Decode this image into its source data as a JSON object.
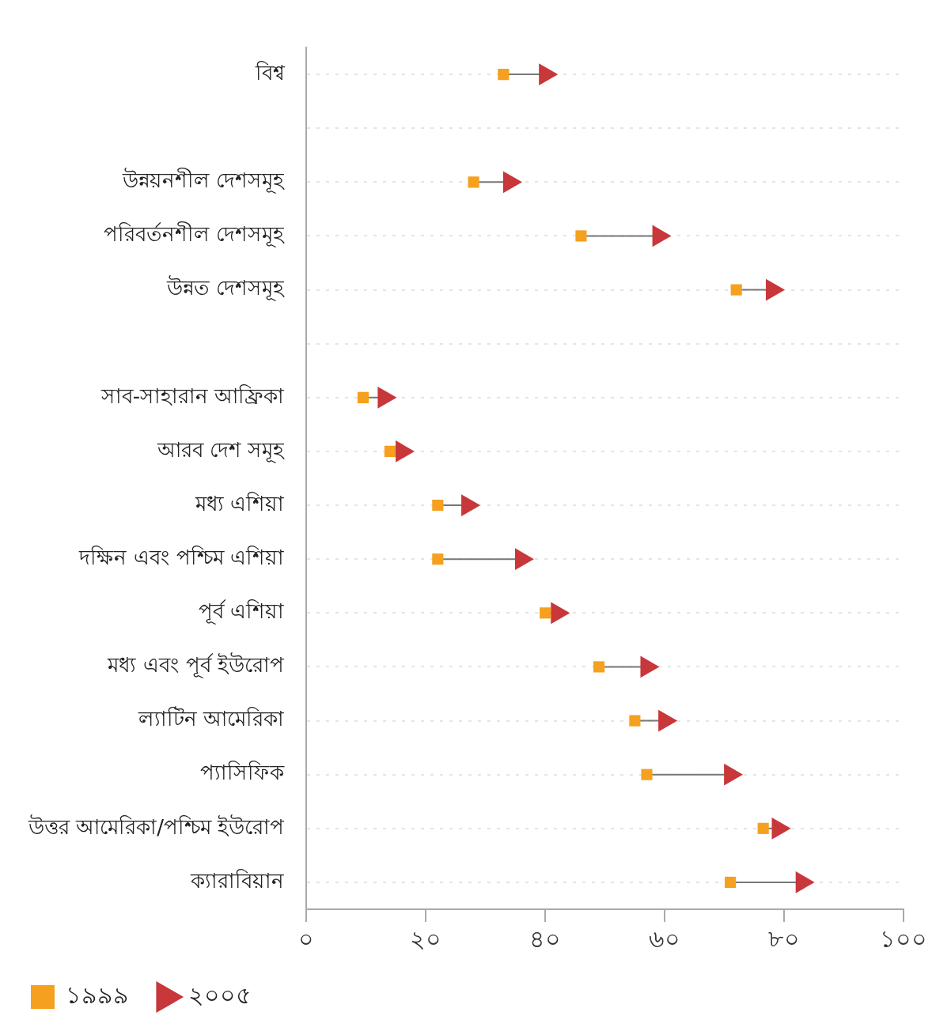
{
  "chart_data": {
    "type": "scatter",
    "categories": [
      "বিশ্ব",
      null,
      "উন্নয়নশীল দেশসমূহ",
      "পরিবর্তনশীল দেশসমূহ",
      "উন্নত দেশসমূহ",
      null,
      "সাব-সাহারান আফ্রিকা",
      "আরব দেশ সমূহ",
      "মধ্য এশিয়া",
      "দক্ষিন এবং পশ্চিম এশিয়া",
      "পূর্ব এশিয়া",
      "মধ্য এবং পূর্ব ইউরোপ",
      "ল্যাটিন আমেরিকা",
      "প্যাসিফিক",
      "উত্তর আমেরিকা/পশ্চিম ইউরোপ",
      "ক্যারাবিয়ান"
    ],
    "orientation": "horizontal",
    "series": [
      {
        "name": "১৯৯৯",
        "color": "#f5a01e",
        "marker": "square",
        "values": [
          33,
          null,
          28,
          46,
          72,
          null,
          9.5,
          14,
          22,
          22,
          40,
          49,
          55,
          57,
          76.5,
          71
        ]
      },
      {
        "name": "২০০৫",
        "color": "#c8373a",
        "marker": "triangle",
        "values": [
          40,
          null,
          34,
          59,
          78,
          null,
          13,
          16,
          27,
          36,
          42,
          57,
          60,
          71,
          79,
          83
        ]
      }
    ],
    "xlim": [
      0,
      100
    ],
    "xticks": [
      {
        "value": 0,
        "label": "০"
      },
      {
        "value": 20,
        "label": "২০"
      },
      {
        "value": 40,
        "label": "৪০"
      },
      {
        "value": 60,
        "label": "৬০"
      },
      {
        "value": 80,
        "label": "৮০"
      },
      {
        "value": 100,
        "label": "১০০"
      }
    ],
    "grid": "y",
    "legend": "bottom left"
  }
}
